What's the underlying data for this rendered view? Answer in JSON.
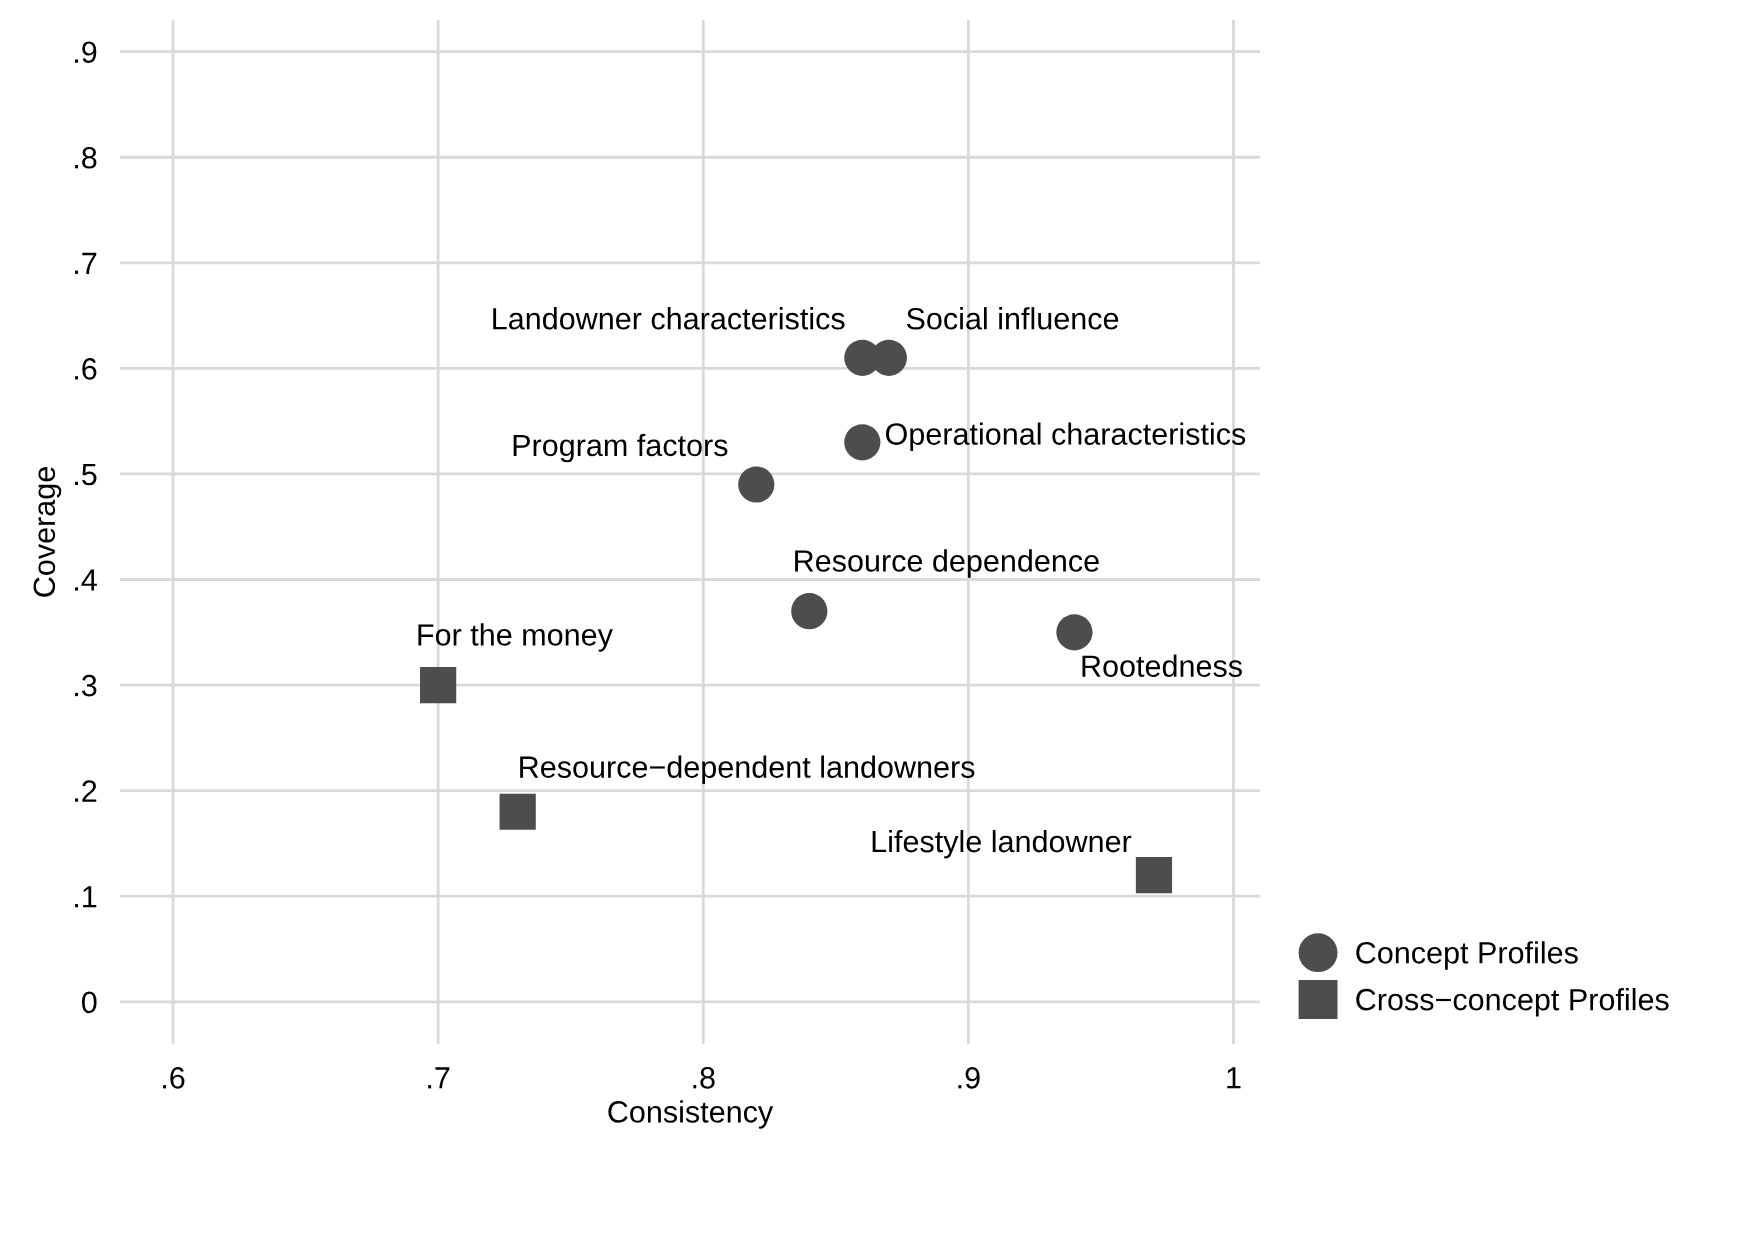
{
  "chart_data": {
    "type": "scatter",
    "xlabel": "Consistency",
    "ylabel": "Coverage",
    "xlim": [
      0.58,
      1.01
    ],
    "ylim": [
      -0.04,
      0.93
    ],
    "xticks": [
      {
        "value": 0.6,
        "label": ".6"
      },
      {
        "value": 0.7,
        "label": ".7"
      },
      {
        "value": 0.8,
        "label": ".8"
      },
      {
        "value": 0.9,
        "label": ".9"
      },
      1
    ],
    "yticks": [
      0,
      {
        "value": 0.1,
        "label": ".1"
      },
      {
        "value": 0.2,
        "label": ".2"
      },
      {
        "value": 0.3,
        "label": ".3"
      },
      {
        "value": 0.4,
        "label": ".4"
      },
      {
        "value": 0.5,
        "label": ".5"
      },
      {
        "value": 0.6,
        "label": ".6"
      },
      {
        "value": 0.7,
        "label": ".7"
      },
      {
        "value": 0.8,
        "label": ".8"
      },
      {
        "value": 0.9,
        "label": ".9"
      }
    ],
    "grid": true,
    "legend": "bottom right",
    "series": [
      {
        "name": "Concept Profiles",
        "color": "#4d4d4d",
        "marker": "circle",
        "x": [
          0.86,
          0.87,
          0.86,
          0.82,
          0.84,
          0.94
        ],
        "values": [
          0.61,
          0.61,
          0.53,
          0.49,
          0.37,
          0.35
        ]
      },
      {
        "name": "Cross−concept Profiles",
        "color": "#4d4d4d",
        "marker": "square",
        "x": [
          0.7,
          0.73,
          0.97
        ],
        "values": [
          0.3,
          0.18,
          0.12
        ]
      }
    ],
    "annotations": [
      {
        "text": "Landowner characteristics",
        "x": 0.86,
        "y": 0.61
      },
      {
        "text": "Social influence",
        "x": 0.87,
        "y": 0.61
      },
      {
        "text": "Operational characteristics",
        "x": 0.86,
        "y": 0.53
      },
      {
        "text": "Program factors",
        "x": 0.82,
        "y": 0.49
      },
      {
        "text": "Resource dependence",
        "x": 0.84,
        "y": 0.37
      },
      {
        "text": "Rootedness",
        "x": 0.94,
        "y": 0.35
      },
      {
        "text": "For the money",
        "x": 0.7,
        "y": 0.3
      },
      {
        "text": "Resource−dependent landowners",
        "x": 0.73,
        "y": 0.18
      },
      {
        "text": "Lifestyle landowner",
        "x": 0.97,
        "y": 0.12
      }
    ]
  }
}
